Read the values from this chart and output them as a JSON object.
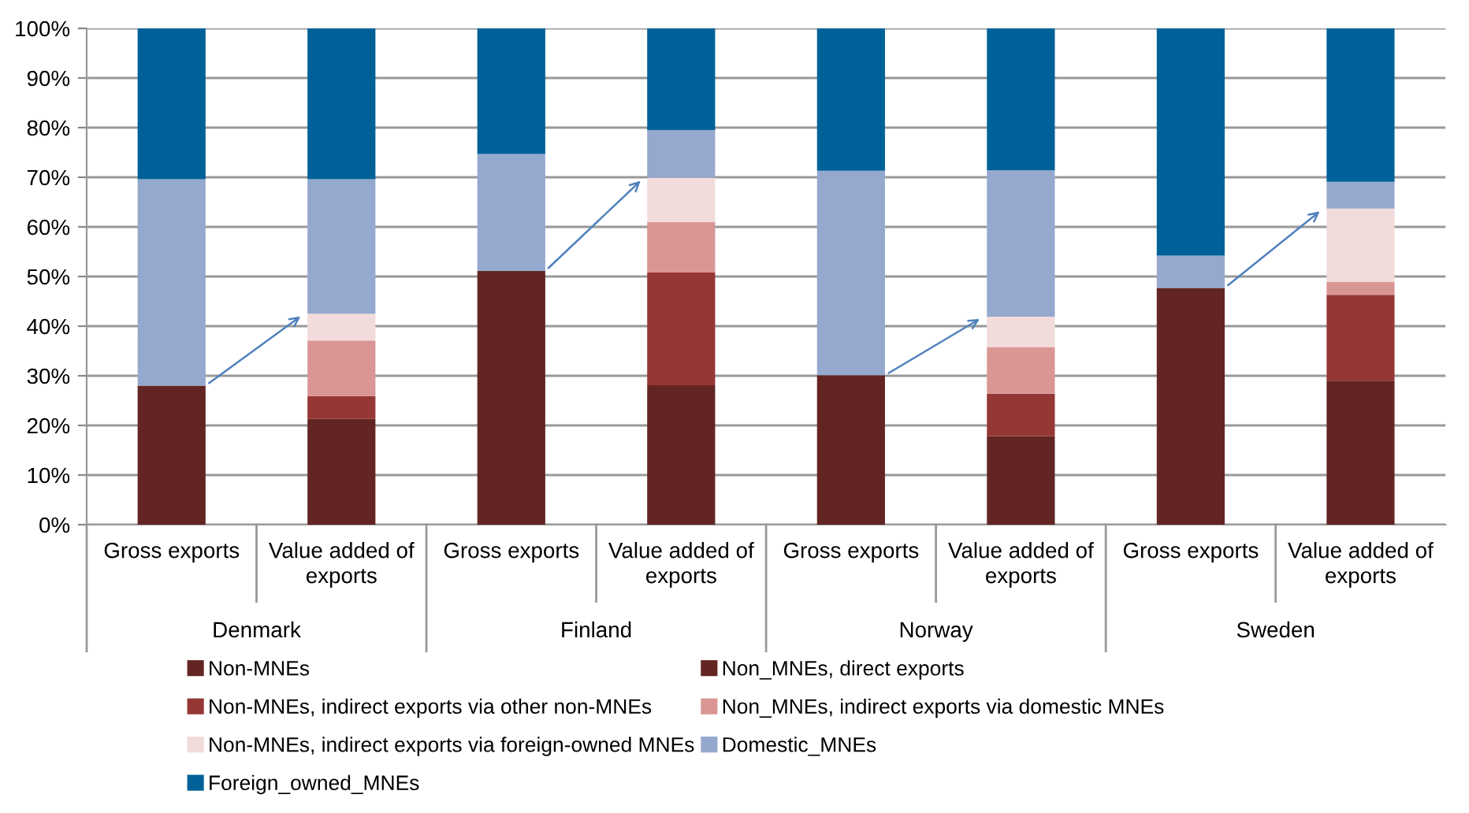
{
  "chart_data": {
    "type": "bar",
    "stacked": true,
    "categories": [
      "Gross exports",
      "Value added of exports",
      "Gross exports",
      "Value added of exports",
      "Gross exports",
      "Value added of exports",
      "Gross exports",
      "Value added of exports"
    ],
    "annotations": [
      "Denmark",
      "Finland",
      "Norway",
      "Sweden"
    ],
    "series": [
      {
        "name": "Non-MNEs",
        "color": "#632523",
        "values": [
          28.0,
          null,
          51.1,
          null,
          30.1,
          null,
          47.7,
          null
        ]
      },
      {
        "name": "Non_MNEs, direct exports",
        "color": "#632523",
        "values": [
          null,
          21.3,
          null,
          28.1,
          null,
          17.8,
          null,
          29.0
        ]
      },
      {
        "name": "Non-MNEs, indirect exports via other non-MNEs",
        "color": "#953735",
        "values": [
          null,
          4.6,
          null,
          22.7,
          null,
          8.6,
          null,
          17.3
        ]
      },
      {
        "name": "Non_MNEs, indirect exports via domestic MNEs",
        "color": "#d99694",
        "values": [
          null,
          11.2,
          null,
          10.2,
          null,
          9.4,
          null,
          2.6
        ]
      },
      {
        "name": "Non-MNEs, indirect exports via foreign-owned MNEs",
        "color": "#f2dcdb",
        "values": [
          null,
          5.4,
          null,
          8.9,
          null,
          6.1,
          null,
          14.8
        ]
      },
      {
        "name": "Domestic_MNEs",
        "color": "#95a9cf",
        "values": [
          41.6,
          27.1,
          23.6,
          9.6,
          41.2,
          29.5,
          6.5,
          5.4
        ]
      },
      {
        "name": "Foreign_owned_MNEs",
        "color": "#006199",
        "values": [
          30.4,
          30.4,
          25.3,
          20.5,
          28.7,
          28.6,
          45.8,
          30.9
        ]
      }
    ],
    "ylim": [
      0,
      100
    ],
    "yticks": [
      {
        "value": 0,
        "label": "0%"
      },
      {
        "value": 10,
        "label": "10%"
      },
      {
        "value": 20,
        "label": "20%"
      },
      {
        "value": 30,
        "label": "30%"
      },
      {
        "value": 40,
        "label": "40%"
      },
      {
        "value": 50,
        "label": "50%"
      },
      {
        "value": 60,
        "label": "60%"
      },
      {
        "value": 70,
        "label": "70%"
      },
      {
        "value": 80,
        "label": "80%"
      },
      {
        "value": 90,
        "label": "90%"
      },
      {
        "value": 100,
        "label": "100%"
      }
    ],
    "grid": "y",
    "legend": "bottom"
  }
}
